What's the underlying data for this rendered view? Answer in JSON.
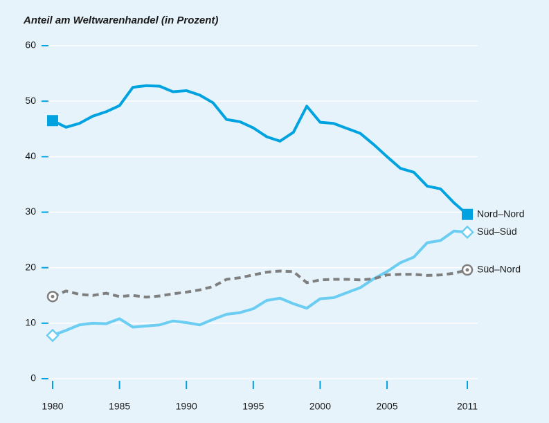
{
  "chart_data": {
    "type": "line",
    "title": "Anteil am Weltwarenhandel (in Prozent)",
    "x": [
      1980,
      1981,
      1982,
      1983,
      1984,
      1985,
      1986,
      1987,
      1988,
      1989,
      1990,
      1991,
      1992,
      1993,
      1994,
      1995,
      1996,
      1997,
      1998,
      1999,
      2000,
      2001,
      2002,
      2003,
      2004,
      2005,
      2006,
      2007,
      2008,
      2009,
      2010,
      2011
    ],
    "xlim": [
      1980,
      2011
    ],
    "xticks": [
      1980,
      1985,
      1990,
      1995,
      2000,
      2005,
      2011
    ],
    "ylim": [
      0,
      60
    ],
    "yticks": [
      0,
      10,
      20,
      30,
      40,
      50,
      60
    ],
    "grid": true,
    "series": [
      {
        "name": "Nord–Nord",
        "color": "#00a3e0",
        "marker": "square",
        "dashed": false,
        "values": [
          46.5,
          45.3,
          46.0,
          47.3,
          48.1,
          49.2,
          52.5,
          52.8,
          52.7,
          51.7,
          51.9,
          51.1,
          49.7,
          46.7,
          46.3,
          45.2,
          43.6,
          42.8,
          44.4,
          49.1,
          46.2,
          46.0,
          45.1,
          44.2,
          42.2,
          40.0,
          37.9,
          37.2,
          34.7,
          34.2,
          31.7,
          29.6
        ]
      },
      {
        "name": "Süd–Süd",
        "color": "#6ccdf2",
        "marker": "diamond",
        "dashed": false,
        "values": [
          7.8,
          8.7,
          9.7,
          10.0,
          9.9,
          10.8,
          9.3,
          9.5,
          9.7,
          10.4,
          10.1,
          9.7,
          10.7,
          11.6,
          11.9,
          12.6,
          14.1,
          14.5,
          13.5,
          12.7,
          14.4,
          14.6,
          15.5,
          16.4,
          18.0,
          19.3,
          20.9,
          21.9,
          24.5,
          24.9,
          26.6,
          26.4
        ]
      },
      {
        "name": "Süd–Nord",
        "color": "#7f7f7f",
        "marker": "circle-dot",
        "dashed": true,
        "values": [
          14.8,
          15.8,
          15.2,
          15.0,
          15.4,
          14.8,
          15.0,
          14.7,
          14.9,
          15.3,
          15.6,
          16.0,
          16.6,
          17.9,
          18.2,
          18.7,
          19.2,
          19.4,
          19.3,
          17.3,
          17.8,
          17.9,
          17.9,
          17.8,
          18.0,
          18.7,
          18.8,
          18.8,
          18.6,
          18.7,
          19.0,
          19.6
        ]
      }
    ]
  }
}
